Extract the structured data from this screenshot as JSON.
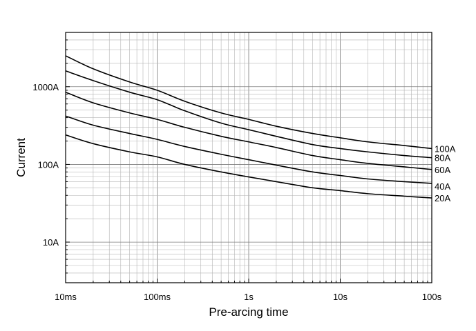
{
  "chart_data": {
    "type": "line",
    "xlabel": "Pre-arcing time",
    "ylabel": "Current",
    "x_scale": "log",
    "y_scale": "log",
    "xlim_seconds": [
      0.01,
      100
    ],
    "ylim_amperes": [
      3,
      5000
    ],
    "grid": true,
    "x_ticks": [
      {
        "value": 0.01,
        "label": "10ms"
      },
      {
        "value": 0.1,
        "label": "100ms"
      },
      {
        "value": 1,
        "label": "1s"
      },
      {
        "value": 10,
        "label": "10s"
      },
      {
        "value": 100,
        "label": "100s"
      }
    ],
    "y_ticks": [
      {
        "value": 10,
        "label": "10A"
      },
      {
        "value": 100,
        "label": "100A"
      },
      {
        "value": 1000,
        "label": "1000A"
      }
    ],
    "series": [
      {
        "name": "100A",
        "x": [
          0.01,
          0.02,
          0.05,
          0.1,
          0.2,
          0.5,
          1,
          2,
          5,
          10,
          20,
          50,
          100
        ],
        "y": [
          2500,
          1700,
          1150,
          900,
          650,
          460,
          380,
          310,
          250,
          220,
          195,
          175,
          160
        ]
      },
      {
        "name": "80A",
        "x": [
          0.01,
          0.02,
          0.05,
          0.1,
          0.2,
          0.5,
          1,
          2,
          5,
          10,
          20,
          50,
          100
        ],
        "y": [
          1600,
          1200,
          850,
          680,
          490,
          340,
          280,
          230,
          180,
          160,
          145,
          130,
          122
        ]
      },
      {
        "name": "60A",
        "x": [
          0.01,
          0.02,
          0.05,
          0.1,
          0.2,
          0.5,
          1,
          2,
          5,
          10,
          20,
          50,
          100
        ],
        "y": [
          850,
          620,
          460,
          380,
          300,
          230,
          195,
          165,
          130,
          115,
          103,
          93,
          86
        ]
      },
      {
        "name": "40A",
        "x": [
          0.01,
          0.02,
          0.05,
          0.1,
          0.2,
          0.5,
          1,
          2,
          5,
          10,
          20,
          50,
          100
        ],
        "y": [
          420,
          320,
          250,
          210,
          170,
          135,
          115,
          98,
          80,
          72,
          65,
          60,
          57
        ]
      },
      {
        "name": "20A",
        "x": [
          0.01,
          0.02,
          0.05,
          0.1,
          0.2,
          0.5,
          1,
          2,
          5,
          10,
          20,
          50,
          100
        ],
        "y": [
          240,
          185,
          145,
          125,
          100,
          80,
          69,
          60,
          50,
          46,
          42,
          39,
          37
        ]
      }
    ]
  }
}
